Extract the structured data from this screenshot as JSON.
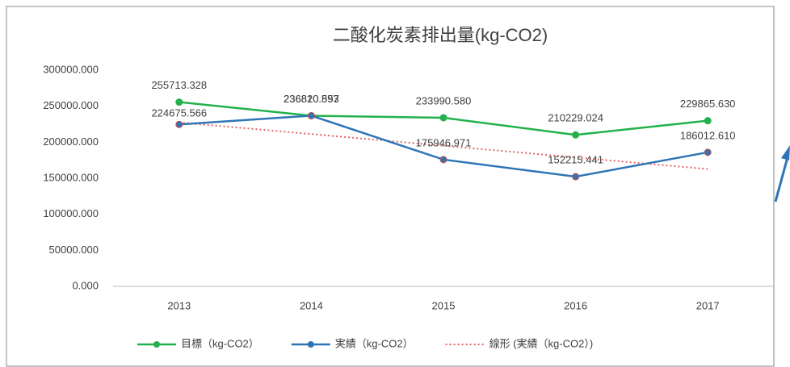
{
  "chart_data": {
    "type": "line",
    "title": "二酸化炭素排出量(kg-CO2)",
    "categories": [
      "2013",
      "2014",
      "2015",
      "2016",
      "2017"
    ],
    "series": [
      {
        "name": "目標（kg-CO2）",
        "color": "#22b14c",
        "values": [
          255713.328,
          236820.893,
          233990.58,
          210229.024,
          229865.63
        ],
        "value_labels": [
          "255713.328",
          "236820.893",
          "233990.580",
          "210229.024",
          "229865.630"
        ]
      },
      {
        "name": "実績（kg-CO2）",
        "color": "#2e75b6",
        "values": [
          224675.566,
          236810.557,
          175946.971,
          152215.441,
          186012.61
        ],
        "value_labels": [
          "224675.566",
          "236810.557",
          "175946.971",
          "152215.441",
          "186012.610"
        ]
      }
    ],
    "trendline": {
      "name": "線形 (実績（kg-CO2）)",
      "color": "#e06666",
      "fit": "linear",
      "series": 1
    },
    "ylim": [
      0,
      300000
    ],
    "yticks": [
      {
        "value": 0,
        "label": "0.000"
      },
      {
        "value": 50000,
        "label": "50000.000"
      },
      {
        "value": 100000,
        "label": "100000.000"
      },
      {
        "value": 150000,
        "label": "150000.000"
      },
      {
        "value": 200000,
        "label": "200000.000"
      },
      {
        "value": 250000,
        "label": "250000.000"
      },
      {
        "value": 300000,
        "label": "300000.000"
      }
    ],
    "grid": false,
    "legend": "bottom"
  }
}
